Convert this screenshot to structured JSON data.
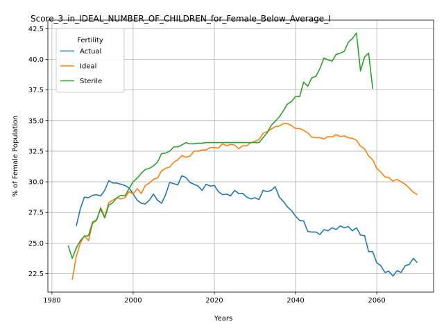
{
  "chart_data": {
    "type": "line",
    "title": "Score_3_in_IDEAL_NUMBER_OF_CHILDREN_for_Female_Below_Average_I",
    "xlabel": "Years",
    "ylabel": "% of Female Population",
    "xlim": [
      1979,
      2074
    ],
    "ylim": [
      21.0,
      43.2
    ],
    "xticks": [
      1980,
      2000,
      2020,
      2040,
      2060
    ],
    "xtick_labels": [
      "1980",
      "2000",
      "2020",
      "2040",
      "2060"
    ],
    "yticks": [
      22.5,
      25.0,
      27.5,
      30.0,
      32.5,
      35.0,
      37.5,
      40.0,
      42.5
    ],
    "ytick_labels": [
      "22.5",
      "25.0",
      "27.5",
      "30.0",
      "32.5",
      "35.0",
      "37.5",
      "40.0",
      "42.5"
    ],
    "grid": true,
    "legend": {
      "title": "Fertility",
      "placement": "top-left"
    },
    "series": [
      {
        "name": "Actual",
        "color": "#1f77b4",
        "x": [
          1986,
          1987,
          1988,
          1989,
          1990,
          1991,
          1992,
          1993,
          1994,
          1995,
          1996,
          1997,
          1998,
          1999,
          2000,
          2001,
          2002,
          2003,
          2004,
          2005,
          2006,
          2007,
          2008,
          2009,
          2010,
          2011,
          2012,
          2013,
          2014,
          2015,
          2016,
          2017,
          2018,
          2019,
          2020,
          2021,
          2022,
          2023,
          2024,
          2025,
          2026,
          2027,
          2028,
          2029,
          2030,
          2031,
          2032,
          2033,
          2034,
          2035,
          2036,
          2037,
          2038,
          2039,
          2040,
          2041,
          2042,
          2043,
          2044,
          2045,
          2046,
          2047,
          2048,
          2049,
          2050,
          2051,
          2052,
          2053,
          2054,
          2055,
          2056,
          2057,
          2058,
          2059,
          2060,
          2061,
          2062,
          2063,
          2064,
          2065,
          2066,
          2067,
          2068,
          2069,
          2070
        ],
        "y": [
          26.4,
          27.8,
          28.75,
          28.7,
          28.9,
          28.95,
          28.85,
          29.3,
          30.1,
          29.9,
          29.9,
          29.8,
          29.7,
          29.5,
          29.0,
          28.5,
          28.25,
          28.2,
          28.5,
          29.0,
          28.5,
          28.25,
          28.95,
          29.95,
          29.85,
          29.75,
          30.5,
          30.35,
          29.95,
          29.8,
          29.65,
          29.3,
          29.8,
          29.65,
          29.7,
          29.2,
          28.95,
          29.0,
          28.85,
          29.3,
          29.05,
          29.05,
          28.75,
          28.6,
          28.7,
          28.55,
          29.3,
          29.2,
          29.3,
          29.6,
          28.75,
          28.4,
          27.95,
          27.65,
          27.2,
          26.85,
          26.8,
          25.95,
          25.9,
          25.9,
          25.7,
          26.1,
          26.0,
          26.25,
          26.1,
          26.4,
          26.25,
          26.35,
          26.0,
          26.25,
          25.65,
          25.6,
          24.3,
          24.3,
          23.4,
          23.15,
          22.6,
          22.7,
          22.3,
          22.75,
          22.6,
          23.15,
          23.25,
          23.75,
          23.4
        ]
      },
      {
        "name": "Ideal",
        "color": "#ff7f0e",
        "x": [
          1985,
          1986,
          1987,
          1988,
          1989,
          1990,
          1991,
          1992,
          1993,
          1994,
          1995,
          1996,
          1997,
          1998,
          1999,
          2000,
          2001,
          2002,
          2003,
          2004,
          2005,
          2006,
          2007,
          2008,
          2009,
          2010,
          2011,
          2012,
          2013,
          2014,
          2015,
          2016,
          2017,
          2018,
          2019,
          2020,
          2021,
          2022,
          2023,
          2024,
          2025,
          2026,
          2027,
          2028,
          2029,
          2030,
          2031,
          2032,
          2033,
          2034,
          2035,
          2036,
          2037,
          2038,
          2039,
          2040,
          2041,
          2042,
          2043,
          2044,
          2045,
          2046,
          2047,
          2048,
          2049,
          2050,
          2051,
          2052,
          2053,
          2054,
          2055,
          2056,
          2057,
          2058,
          2059,
          2060,
          2061,
          2062,
          2063,
          2064,
          2065,
          2066,
          2067,
          2068,
          2069,
          2070
        ],
        "y": [
          22.0,
          23.9,
          25.0,
          25.6,
          25.2,
          26.6,
          26.85,
          27.9,
          27.15,
          28.3,
          28.5,
          28.7,
          28.6,
          28.7,
          29.2,
          29.0,
          29.45,
          29.05,
          29.7,
          29.9,
          30.2,
          30.3,
          30.9,
          31.1,
          31.2,
          31.6,
          31.8,
          32.15,
          32.0,
          32.1,
          32.5,
          32.5,
          32.6,
          32.6,
          32.8,
          32.8,
          32.75,
          33.1,
          32.95,
          33.05,
          33.0,
          32.7,
          32.95,
          32.95,
          33.2,
          33.3,
          33.45,
          33.95,
          34.1,
          34.3,
          34.5,
          34.55,
          34.75,
          34.75,
          34.6,
          34.35,
          34.35,
          34.2,
          34.0,
          33.65,
          33.6,
          33.6,
          33.5,
          33.7,
          33.65,
          33.85,
          33.7,
          33.75,
          33.6,
          33.55,
          33.4,
          32.9,
          32.7,
          32.1,
          31.8,
          31.1,
          30.8,
          30.4,
          30.35,
          30.05,
          30.2,
          30.0,
          29.8,
          29.5,
          29.15,
          28.95
        ]
      },
      {
        "name": "Sterile",
        "color": "#2ca02c",
        "x": [
          1984,
          1985,
          1986,
          1987,
          1988,
          1989,
          1990,
          1991,
          1992,
          1993,
          1994,
          1995,
          1996,
          1997,
          1998,
          1999,
          2000,
          2001,
          2002,
          2003,
          2004,
          2005,
          2006,
          2007,
          2008,
          2009,
          2010,
          2011,
          2012,
          2013,
          2014,
          2015,
          2016,
          2017,
          2018,
          2019,
          2020,
          2021,
          2022,
          2023,
          2024,
          2025,
          2026,
          2027,
          2028,
          2029,
          2030,
          2031,
          2032,
          2033,
          2034,
          2035,
          2036,
          2037,
          2038,
          2039,
          2040,
          2041,
          2042,
          2043,
          2044,
          2045,
          2046,
          2047,
          2048,
          2049,
          2050,
          2051,
          2052,
          2053,
          2054,
          2055,
          2056,
          2057,
          2058,
          2059
        ],
        "y": [
          24.8,
          23.75,
          24.6,
          25.2,
          25.55,
          25.6,
          26.7,
          26.9,
          27.8,
          27.05,
          28.1,
          28.3,
          28.7,
          28.9,
          28.85,
          29.45,
          30.0,
          30.3,
          30.7,
          31.0,
          31.1,
          31.3,
          31.6,
          32.3,
          32.35,
          32.5,
          32.85,
          32.85,
          33.0,
          33.2,
          33.1,
          33.1,
          33.15,
          33.15,
          33.2,
          33.2,
          33.2,
          33.2,
          33.2,
          33.2,
          33.2,
          33.2,
          33.2,
          33.2,
          33.2,
          33.2,
          33.2,
          33.2,
          33.6,
          34.0,
          34.6,
          34.95,
          35.3,
          35.8,
          36.35,
          36.55,
          36.95,
          36.95,
          38.15,
          37.8,
          38.5,
          38.6,
          39.25,
          40.1,
          39.95,
          39.85,
          40.4,
          40.5,
          40.65,
          41.4,
          41.7,
          42.15,
          39.05,
          40.2,
          40.5,
          37.6
        ]
      }
    ]
  }
}
